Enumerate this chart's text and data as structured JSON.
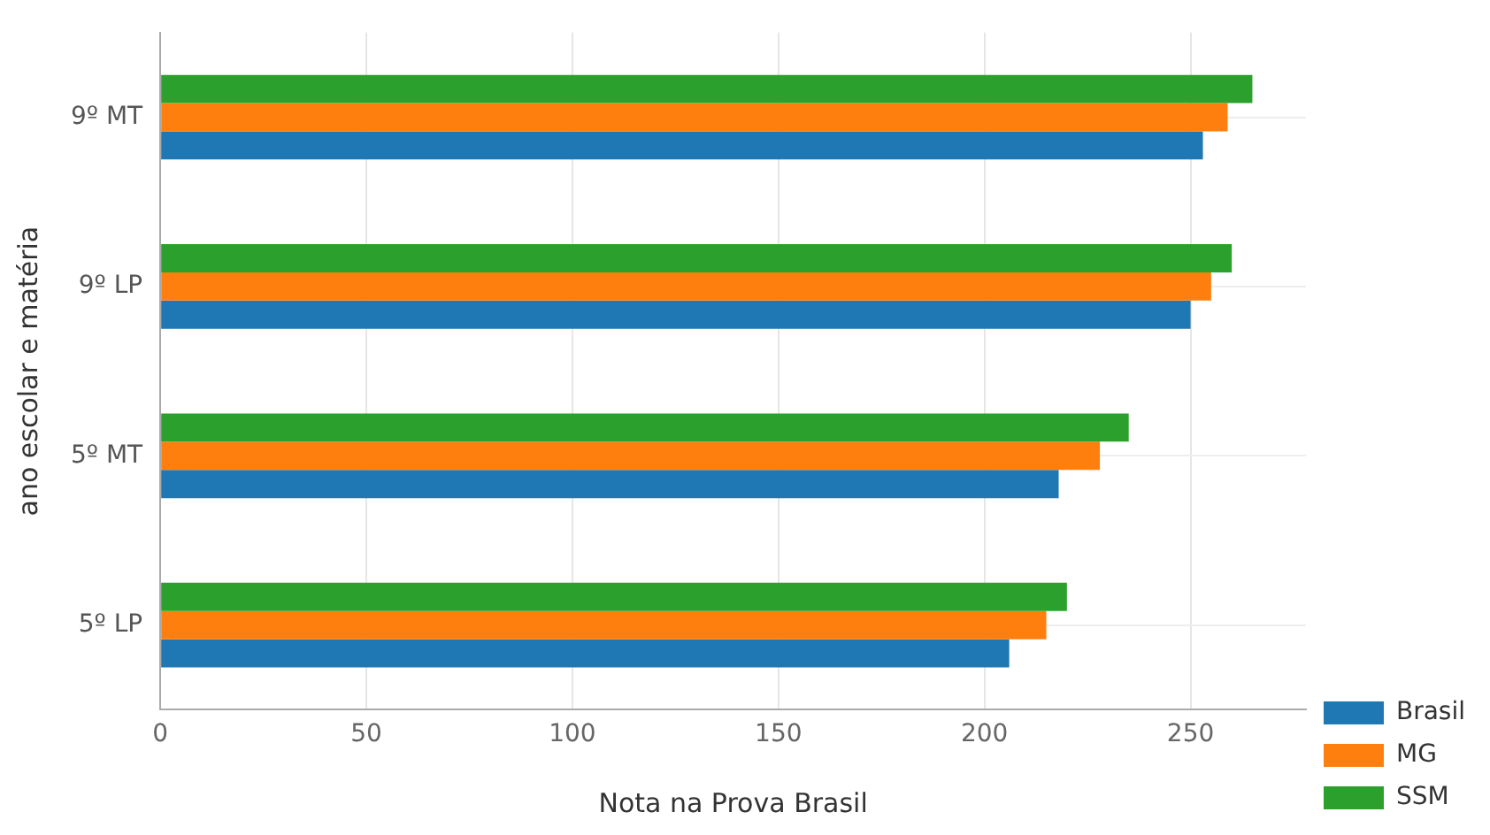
{
  "chart_data": {
    "type": "bar",
    "orientation": "horizontal",
    "xlabel": "Nota na Prova Brasil",
    "ylabel": "ano escolar e matéria",
    "categories": [
      "9º MT",
      "9º LP",
      "5º MT",
      "5º LP"
    ],
    "series": [
      {
        "name": "Brasil",
        "color": "#1f77b4",
        "values": [
          253,
          250,
          218,
          206
        ]
      },
      {
        "name": "MG",
        "color": "#ff7f0e",
        "values": [
          259,
          255,
          228,
          215
        ]
      },
      {
        "name": "SSM",
        "color": "#2ca02c",
        "values": [
          265,
          260,
          235,
          220
        ]
      }
    ],
    "xlim": [
      0,
      278
    ],
    "xticks": [
      0,
      50,
      100,
      150,
      200,
      250
    ],
    "grid": true,
    "legend": "bottom right"
  }
}
